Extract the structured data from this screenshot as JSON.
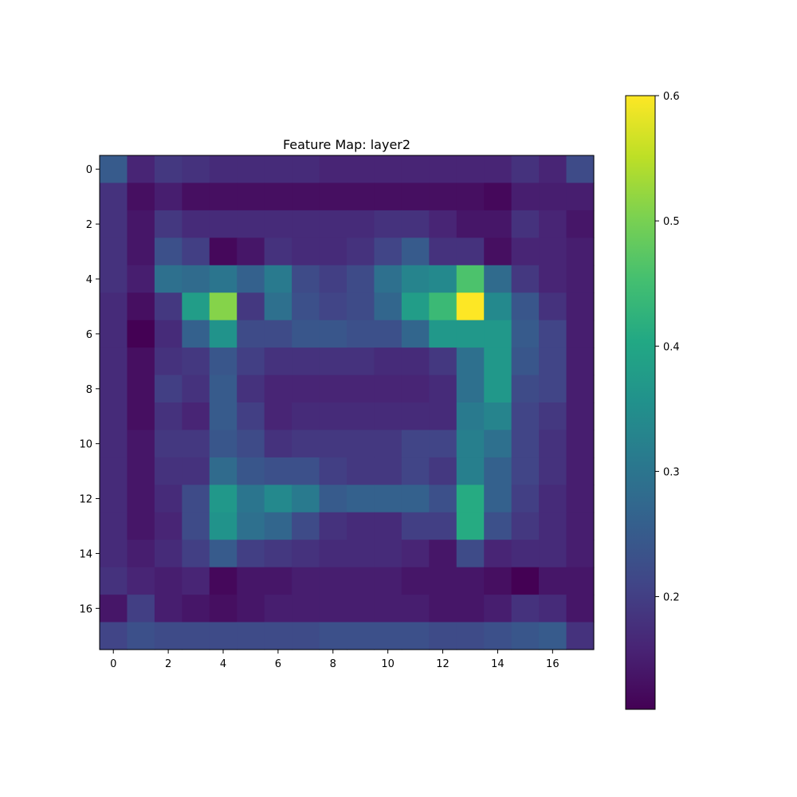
{
  "chart_data": {
    "type": "heatmap",
    "title": "Feature Map: layer2",
    "colormap": "viridis",
    "vmin": 0.11,
    "vmax": 0.6,
    "x_ticks": [
      0,
      2,
      4,
      6,
      8,
      10,
      12,
      14,
      16
    ],
    "y_ticks": [
      0,
      2,
      4,
      6,
      8,
      10,
      12,
      14,
      16
    ],
    "colorbar_ticks": [
      0.2,
      0.3,
      0.4,
      0.5,
      0.6
    ],
    "xlim": [
      -0.5,
      17.5
    ],
    "ylim": [
      17.5,
      -0.5
    ],
    "grid": false,
    "values": [
      [
        0.25,
        0.16,
        0.19,
        0.18,
        0.17,
        0.17,
        0.17,
        0.17,
        0.16,
        0.16,
        0.16,
        0.16,
        0.16,
        0.16,
        0.16,
        0.18,
        0.16,
        0.22
      ],
      [
        0.18,
        0.13,
        0.15,
        0.13,
        0.13,
        0.13,
        0.13,
        0.13,
        0.13,
        0.13,
        0.13,
        0.13,
        0.13,
        0.13,
        0.12,
        0.15,
        0.15,
        0.15
      ],
      [
        0.18,
        0.14,
        0.19,
        0.17,
        0.17,
        0.17,
        0.17,
        0.17,
        0.17,
        0.17,
        0.18,
        0.18,
        0.16,
        0.14,
        0.14,
        0.18,
        0.16,
        0.14
      ],
      [
        0.18,
        0.14,
        0.23,
        0.2,
        0.12,
        0.14,
        0.18,
        0.17,
        0.17,
        0.18,
        0.21,
        0.25,
        0.18,
        0.18,
        0.13,
        0.16,
        0.16,
        0.15
      ],
      [
        0.18,
        0.15,
        0.29,
        0.28,
        0.3,
        0.26,
        0.31,
        0.22,
        0.2,
        0.22,
        0.29,
        0.33,
        0.34,
        0.46,
        0.28,
        0.19,
        0.16,
        0.15
      ],
      [
        0.17,
        0.13,
        0.19,
        0.38,
        0.51,
        0.19,
        0.29,
        0.23,
        0.21,
        0.22,
        0.27,
        0.38,
        0.44,
        0.6,
        0.34,
        0.24,
        0.18,
        0.15
      ],
      [
        0.17,
        0.11,
        0.17,
        0.26,
        0.36,
        0.22,
        0.22,
        0.24,
        0.24,
        0.23,
        0.23,
        0.27,
        0.37,
        0.37,
        0.37,
        0.25,
        0.21,
        0.15
      ],
      [
        0.17,
        0.13,
        0.18,
        0.19,
        0.24,
        0.2,
        0.18,
        0.18,
        0.18,
        0.18,
        0.17,
        0.17,
        0.19,
        0.29,
        0.37,
        0.24,
        0.21,
        0.15
      ],
      [
        0.17,
        0.13,
        0.2,
        0.18,
        0.25,
        0.18,
        0.16,
        0.16,
        0.16,
        0.16,
        0.16,
        0.16,
        0.17,
        0.29,
        0.37,
        0.22,
        0.21,
        0.15
      ],
      [
        0.17,
        0.13,
        0.18,
        0.16,
        0.25,
        0.2,
        0.16,
        0.17,
        0.17,
        0.17,
        0.17,
        0.17,
        0.17,
        0.31,
        0.33,
        0.21,
        0.19,
        0.15
      ],
      [
        0.17,
        0.14,
        0.19,
        0.19,
        0.24,
        0.22,
        0.18,
        0.19,
        0.19,
        0.19,
        0.19,
        0.21,
        0.21,
        0.32,
        0.29,
        0.21,
        0.18,
        0.15
      ],
      [
        0.17,
        0.14,
        0.18,
        0.18,
        0.28,
        0.24,
        0.23,
        0.23,
        0.2,
        0.19,
        0.19,
        0.21,
        0.19,
        0.32,
        0.26,
        0.21,
        0.18,
        0.15
      ],
      [
        0.17,
        0.14,
        0.17,
        0.22,
        0.37,
        0.3,
        0.34,
        0.31,
        0.25,
        0.26,
        0.26,
        0.26,
        0.23,
        0.41,
        0.26,
        0.2,
        0.17,
        0.15
      ],
      [
        0.17,
        0.14,
        0.16,
        0.22,
        0.36,
        0.29,
        0.27,
        0.22,
        0.18,
        0.17,
        0.17,
        0.2,
        0.2,
        0.41,
        0.23,
        0.19,
        0.17,
        0.15
      ],
      [
        0.17,
        0.15,
        0.17,
        0.2,
        0.25,
        0.2,
        0.19,
        0.18,
        0.17,
        0.17,
        0.17,
        0.16,
        0.14,
        0.22,
        0.16,
        0.17,
        0.17,
        0.15
      ],
      [
        0.18,
        0.16,
        0.15,
        0.16,
        0.12,
        0.14,
        0.14,
        0.15,
        0.15,
        0.15,
        0.15,
        0.14,
        0.14,
        0.14,
        0.13,
        0.11,
        0.14,
        0.14
      ],
      [
        0.14,
        0.2,
        0.15,
        0.14,
        0.13,
        0.14,
        0.15,
        0.15,
        0.15,
        0.15,
        0.15,
        0.15,
        0.14,
        0.14,
        0.15,
        0.18,
        0.17,
        0.14
      ],
      [
        0.21,
        0.23,
        0.22,
        0.22,
        0.22,
        0.22,
        0.22,
        0.22,
        0.23,
        0.23,
        0.23,
        0.23,
        0.22,
        0.22,
        0.23,
        0.24,
        0.25,
        0.18
      ]
    ]
  }
}
